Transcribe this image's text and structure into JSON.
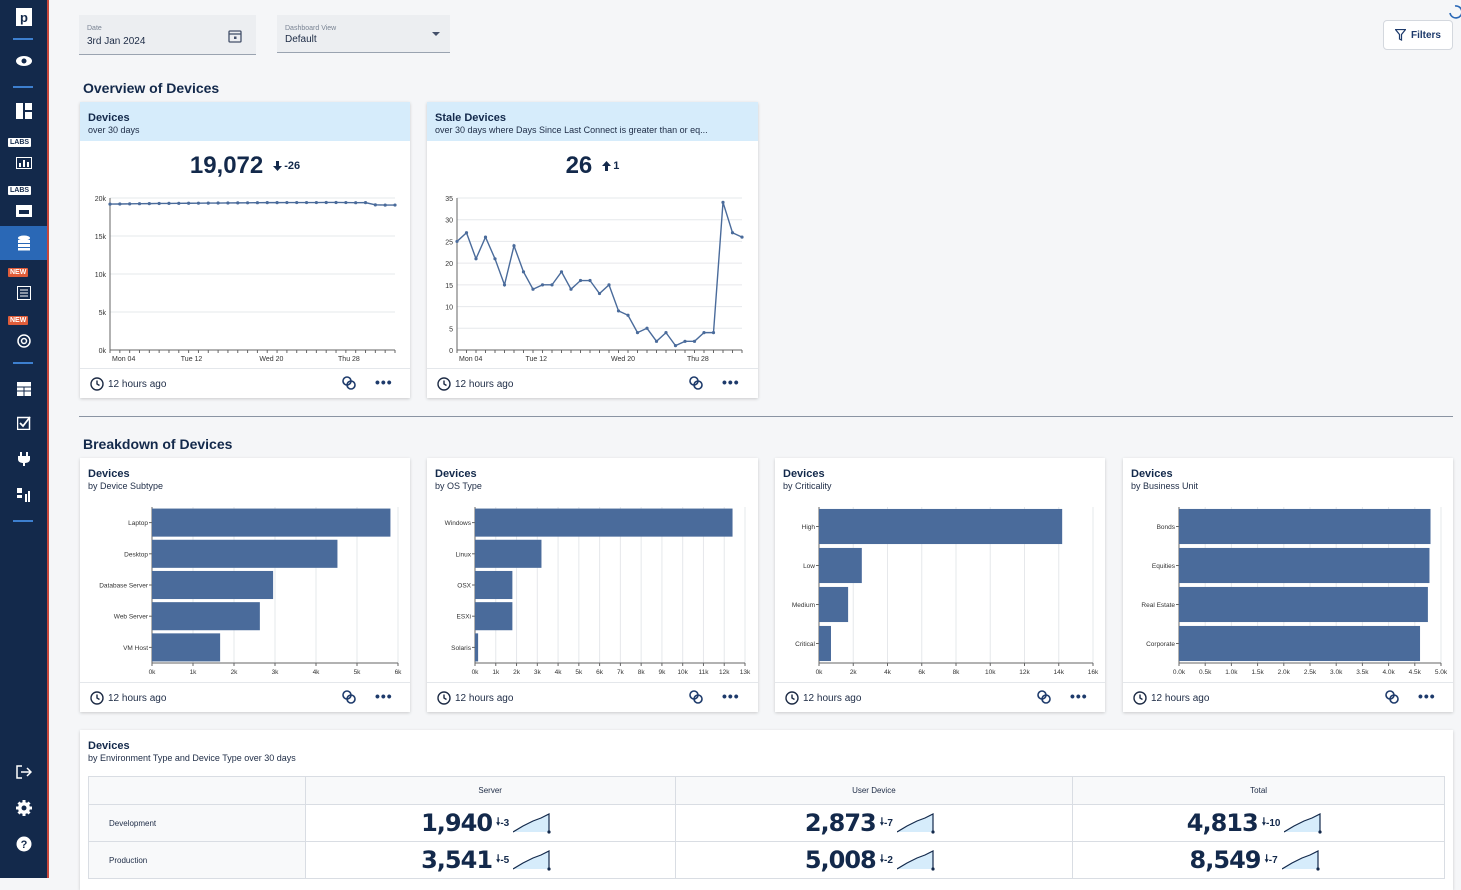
{
  "filters": {
    "date_label": "Date",
    "date_value": "3rd Jan 2024",
    "view_label": "Dashboard View",
    "view_value": "Default",
    "filters_button": "Filters"
  },
  "sidebar": {
    "badges": {
      "labs": "LABS",
      "new": "NEW"
    }
  },
  "overview": {
    "title": "Overview of Devices",
    "devices": {
      "title": "Devices",
      "subtitle": "over 30 days",
      "value": "19,072",
      "delta": "-26",
      "delta_direction": "down",
      "updated": "12 hours ago"
    },
    "stale": {
      "title": "Stale Devices",
      "subtitle": "over 30 days where Days Since Last Connect is greater than or eq...",
      "value": "26",
      "delta": "1",
      "delta_direction": "up",
      "updated": "12 hours ago"
    }
  },
  "breakdown": {
    "title": "Breakdown of Devices",
    "subtype": {
      "title": "Devices",
      "subtitle": "by Device Subtype",
      "updated": "12 hours ago"
    },
    "os": {
      "title": "Devices",
      "subtitle": "by OS Type",
      "updated": "12 hours ago"
    },
    "criticality": {
      "title": "Devices",
      "subtitle": "by Criticality",
      "updated": "12 hours ago"
    },
    "business": {
      "title": "Devices",
      "subtitle": "by Business Unit",
      "updated": "12 hours ago"
    }
  },
  "env_table": {
    "title": "Devices",
    "subtitle": "by Environment Type and Device Type over 30 days",
    "columns": [
      "Server",
      "User Device",
      "Total"
    ],
    "rows": [
      {
        "label": "Development",
        "cells": [
          {
            "value": "1,940",
            "delta": "-3"
          },
          {
            "value": "2,873",
            "delta": "-7"
          },
          {
            "value": "4,813",
            "delta": "-10"
          }
        ]
      },
      {
        "label": "Production",
        "cells": [
          {
            "value": "3,541",
            "delta": "-5"
          },
          {
            "value": "5,008",
            "delta": "-2"
          },
          {
            "value": "8,549",
            "delta": "-7"
          }
        ]
      }
    ]
  },
  "colors": {
    "bar": "#4a6b9b",
    "line": "#4a6b9b",
    "accent": "#13294b",
    "head_blue": "#d6ecfb"
  },
  "chart_data": [
    {
      "type": "line",
      "title": "Devices",
      "x_ticks": [
        "Mon 04",
        "Tue 12",
        "Wed 20",
        "Thu 28"
      ],
      "ylim": [
        0,
        20000
      ],
      "y_ticks": [
        "0k",
        "5k",
        "10k",
        "15k",
        "20k"
      ],
      "values": [
        19200,
        19210,
        19230,
        19250,
        19260,
        19280,
        19290,
        19300,
        19310,
        19320,
        19330,
        19340,
        19350,
        19360,
        19370,
        19380,
        19390,
        19390,
        19400,
        19400,
        19400,
        19400,
        19410,
        19410,
        19400,
        19380,
        19390,
        19100,
        19070,
        19072
      ]
    },
    {
      "type": "line",
      "title": "Stale Devices",
      "x_ticks": [
        "Mon 04",
        "Tue 12",
        "Wed 20",
        "Thu 28"
      ],
      "ylim": [
        0,
        35
      ],
      "y_ticks": [
        "0",
        "5",
        "10",
        "15",
        "20",
        "25",
        "30",
        "35"
      ],
      "values": [
        25,
        27,
        21,
        26,
        21,
        15,
        24,
        18,
        14,
        15,
        15,
        18,
        14,
        16,
        16,
        13,
        15,
        9,
        8,
        4,
        5,
        2,
        4,
        1,
        2,
        2,
        4,
        4,
        34,
        27,
        26
      ]
    },
    {
      "type": "bar",
      "title": "Devices by Device Subtype",
      "categories": [
        "Laptop",
        "Desktop",
        "Database Server",
        "Web Server",
        "VM Host"
      ],
      "values": [
        6300,
        4900,
        3200,
        2850,
        1800
      ],
      "xlim": [
        0,
        6500
      ],
      "x_ticks": [
        "0k",
        "1k",
        "2k",
        "3k",
        "4k",
        "5k",
        "6k"
      ]
    },
    {
      "type": "bar",
      "title": "Devices by OS Type",
      "categories": [
        "Windows",
        "Linux",
        "OSX",
        "ESXi",
        "Solaris"
      ],
      "values": [
        12400,
        3200,
        1800,
        1800,
        150
      ],
      "xlim": [
        0,
        13000
      ],
      "x_ticks": [
        "0k",
        "1k",
        "2k",
        "3k",
        "4k",
        "5k",
        "6k",
        "7k",
        "8k",
        "9k",
        "10k",
        "11k",
        "12k",
        "13k"
      ]
    },
    {
      "type": "bar",
      "title": "Devices by Criticality",
      "categories": [
        "High",
        "Low",
        "Medium",
        "Critical"
      ],
      "values": [
        14200,
        2500,
        1700,
        700
      ],
      "xlim": [
        0,
        16000
      ],
      "x_ticks": [
        "0k",
        "2k",
        "4k",
        "6k",
        "8k",
        "10k",
        "12k",
        "14k",
        "16k"
      ]
    },
    {
      "type": "bar",
      "title": "Devices by Business Unit",
      "categories": [
        "Bonds",
        "Equities",
        "Real Estate",
        "Corporate"
      ],
      "values": [
        4800,
        4780,
        4750,
        4600
      ],
      "xlim": [
        0,
        5000
      ],
      "x_ticks": [
        "0.0k",
        "0.5k",
        "1.0k",
        "1.5k",
        "2.0k",
        "2.5k",
        "3.0k",
        "3.5k",
        "4.0k",
        "4.5k",
        "5.0k"
      ]
    }
  ]
}
